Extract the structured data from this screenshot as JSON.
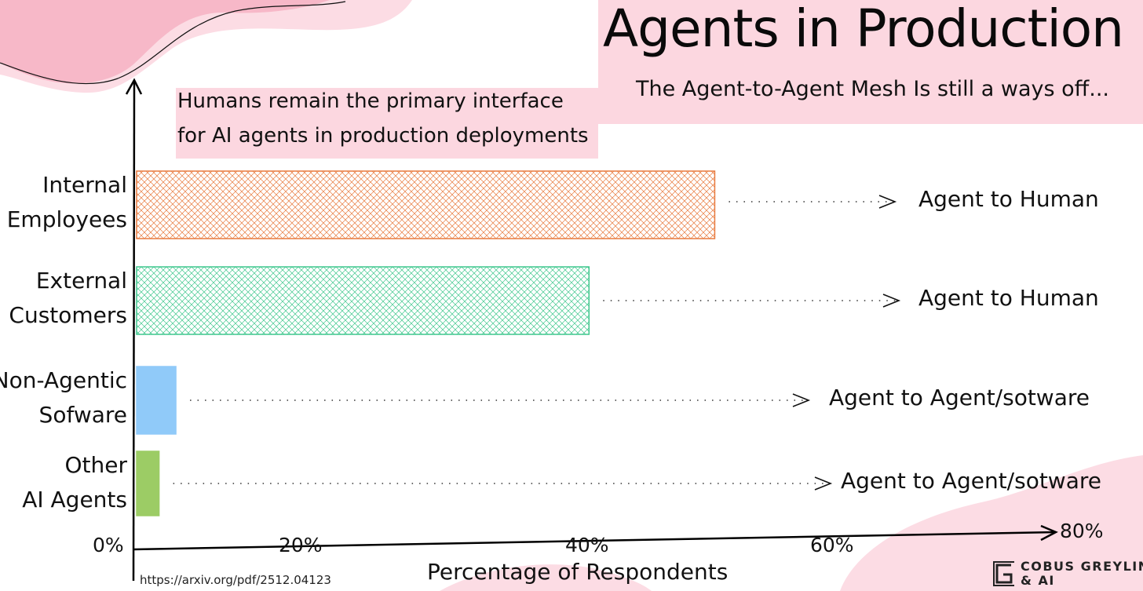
{
  "header": {
    "title": "Agents in Production",
    "subtitle": "The Agent-to-Agent Mesh Is still a ways off..."
  },
  "callout": {
    "line1": "Humans remain the primary interface",
    "line2": "for AI agents in production deployments"
  },
  "footer": {
    "source_url": "https://arxiv.org/pdf/2512.04123",
    "brand_line1": "COBUS GREYLING",
    "brand_line2": "& AI"
  },
  "colors": {
    "accent_pink": "#fcd7e0",
    "internal": "#e87a3e",
    "external": "#3fc78d",
    "non_agentic": "#90caf9",
    "other_agents": "#9ccc65"
  },
  "chart_data": {
    "type": "bar",
    "orientation": "horizontal",
    "categories": [
      {
        "line1": "Internal",
        "line2": "Employees"
      },
      {
        "line1": "External",
        "line2": "Customers"
      },
      {
        "line1": "Non-Agentic",
        "line2": "Sofware"
      },
      {
        "line1": "Other",
        "line2": "AI Agents"
      }
    ],
    "values": [
      51.5,
      40.3,
      3.5,
      2.0
    ],
    "annotations": [
      "Agent to Human",
      "Agent to Human",
      "Agent to Agent/sotware",
      "Agent to Agent/sotware"
    ],
    "xlabel": "Percentage of Respondents",
    "xlim": [
      0,
      80
    ],
    "xticks": [
      "0%",
      "20%",
      "40%",
      "60%",
      "80%"
    ],
    "grid": false
  }
}
